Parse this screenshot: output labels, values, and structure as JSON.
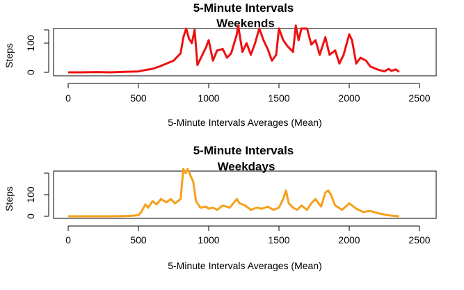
{
  "chart_data": [
    {
      "type": "line",
      "title_line1": "5-Minute Intervals",
      "title_line2": "Weekends",
      "xlabel": "5-Minute Intervals Averages (Mean)",
      "ylabel": "Steps",
      "xlim": [
        0,
        2500
      ],
      "ylim": [
        0,
        200
      ],
      "xticks": [
        0,
        500,
        1000,
        1500,
        2000,
        2500
      ],
      "yticks": [
        0,
        100
      ],
      "color": "#ee1111",
      "series": [
        {
          "x": [
            0,
            100,
            200,
            300,
            400,
            500,
            550,
            600,
            650,
            700,
            750,
            800,
            820,
            840,
            860,
            880,
            900,
            920,
            940,
            980,
            1000,
            1030,
            1060,
            1100,
            1130,
            1160,
            1200,
            1210,
            1240,
            1270,
            1300,
            1330,
            1360,
            1390,
            1420,
            1450,
            1480,
            1500,
            1530,
            1560,
            1600,
            1620,
            1640,
            1660,
            1700,
            1730,
            1760,
            1790,
            1830,
            1860,
            1900,
            1930,
            1960,
            2000,
            2020,
            2050,
            2080,
            2120,
            2150,
            2200,
            2250,
            2280,
            2300,
            2330,
            2355
          ],
          "y": [
            0,
            0,
            1,
            0,
            2,
            3,
            8,
            12,
            20,
            30,
            40,
            65,
            120,
            150,
            115,
            100,
            145,
            25,
            45,
            85,
            110,
            40,
            75,
            80,
            50,
            65,
            130,
            160,
            70,
            100,
            60,
            100,
            150,
            110,
            80,
            40,
            60,
            150,
            110,
            90,
            70,
            160,
            110,
            150,
            150,
            95,
            110,
            60,
            120,
            60,
            75,
            30,
            60,
            130,
            110,
            30,
            50,
            40,
            20,
            10,
            3,
            12,
            5,
            10,
            2
          ]
        }
      ]
    },
    {
      "type": "line",
      "title_line1": "5-Minute Intervals",
      "title_line2": "Weekdays",
      "xlabel": "5-Minute Intervals Averages (Mean)",
      "ylabel": "Steps",
      "xlim": [
        0,
        2500
      ],
      "ylim": [
        0,
        200
      ],
      "xticks": [
        0,
        500,
        1000,
        1500,
        2000,
        2500
      ],
      "yticks": [
        0,
        100
      ],
      "color": "#f5a01a",
      "series": [
        {
          "x": [
            0,
            100,
            200,
            300,
            400,
            450,
            500,
            520,
            550,
            570,
            600,
            630,
            660,
            700,
            730,
            760,
            800,
            820,
            835,
            850,
            870,
            890,
            910,
            940,
            980,
            1000,
            1030,
            1060,
            1100,
            1150,
            1200,
            1220,
            1260,
            1300,
            1340,
            1380,
            1420,
            1460,
            1500,
            1530,
            1550,
            1570,
            1600,
            1630,
            1660,
            1700,
            1730,
            1760,
            1800,
            1830,
            1850,
            1870,
            1900,
            1950,
            2000,
            2050,
            2100,
            2150,
            2200,
            2250,
            2300,
            2355
          ],
          "y": [
            0,
            0,
            0,
            0,
            1,
            2,
            5,
            20,
            55,
            40,
            70,
            55,
            80,
            65,
            80,
            60,
            80,
            220,
            200,
            220,
            190,
            160,
            70,
            40,
            45,
            35,
            40,
            30,
            50,
            40,
            80,
            60,
            50,
            30,
            40,
            35,
            45,
            30,
            40,
            80,
            120,
            60,
            40,
            30,
            50,
            30,
            60,
            80,
            45,
            110,
            120,
            100,
            50,
            30,
            60,
            35,
            20,
            25,
            15,
            8,
            3,
            0
          ]
        }
      ]
    }
  ]
}
